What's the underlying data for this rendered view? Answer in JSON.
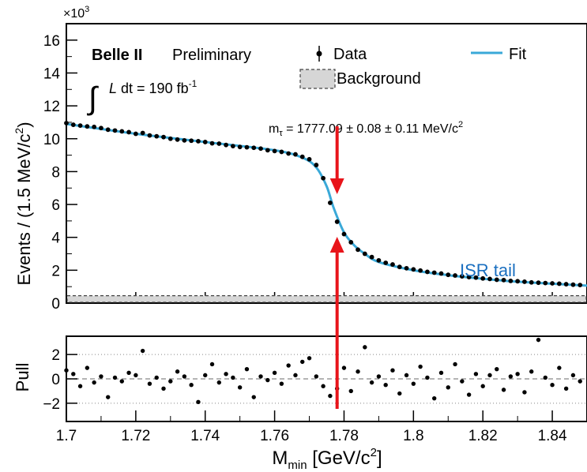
{
  "chart_data": [
    {
      "type": "scatter",
      "panel": "main",
      "multiplier_label": "×10",
      "multiplier_exp": "3",
      "ylabel": "Events / (1.5 MeV/c",
      "ylabel_sup": "2",
      "ylabel_close": ")",
      "ylim": [
        0,
        17
      ],
      "yticks": [
        0,
        2,
        4,
        6,
        8,
        10,
        12,
        14,
        16
      ],
      "ytick_labels": [
        "0",
        "2",
        "4",
        "6",
        "8",
        "10",
        "12",
        "14",
        "16"
      ],
      "xlim": [
        1.7,
        1.85
      ],
      "experiment": "Belle II",
      "status": "Preliminary",
      "lumi_int": "∫",
      "lumi_var": "L",
      "lumi_text": " dt = 190 fb",
      "lumi_sup": "-1",
      "legend": [
        {
          "name": "Data",
          "marker": "point-errorbar"
        },
        {
          "name": "Fit",
          "marker": "line",
          "color": "#3aa9d8"
        },
        {
          "name": "Background",
          "marker": "hatched-box",
          "color": "#d0d0d0"
        }
      ],
      "result_text_1": "m",
      "result_sub": "τ",
      "result_text_2": " = 1777.09 ± 0.08 ± 0.11 MeV/c",
      "result_sup": "2",
      "annotation": "ISR tail",
      "marker_x": 1.778,
      "background_level": 0.45,
      "fit": {
        "x": [
          1.7,
          1.72,
          1.74,
          1.76,
          1.768,
          1.772,
          1.775,
          1.777,
          1.78,
          1.783,
          1.786,
          1.79,
          1.8,
          1.81,
          1.82,
          1.83,
          1.84,
          1.85
        ],
        "y": [
          10.9,
          10.3,
          9.8,
          9.3,
          8.85,
          8.25,
          7.1,
          5.8,
          4.3,
          3.5,
          3.0,
          2.5,
          2.0,
          1.7,
          1.48,
          1.3,
          1.18,
          1.06
        ]
      },
      "data": {
        "x": [
          1.7,
          1.702,
          1.704,
          1.706,
          1.708,
          1.71,
          1.712,
          1.714,
          1.716,
          1.718,
          1.72,
          1.722,
          1.724,
          1.726,
          1.728,
          1.73,
          1.732,
          1.734,
          1.736,
          1.738,
          1.74,
          1.742,
          1.744,
          1.746,
          1.748,
          1.75,
          1.752,
          1.754,
          1.756,
          1.758,
          1.76,
          1.762,
          1.764,
          1.766,
          1.768,
          1.77,
          1.772,
          1.774,
          1.776,
          1.778,
          1.78,
          1.782,
          1.784,
          1.786,
          1.788,
          1.79,
          1.792,
          1.794,
          1.796,
          1.798,
          1.8,
          1.802,
          1.804,
          1.806,
          1.808,
          1.81,
          1.812,
          1.814,
          1.816,
          1.818,
          1.82,
          1.822,
          1.824,
          1.826,
          1.828,
          1.83,
          1.832,
          1.834,
          1.836,
          1.838,
          1.84,
          1.842,
          1.844,
          1.846,
          1.848,
          1.85
        ],
        "y": [
          10.95,
          10.85,
          10.8,
          10.75,
          10.72,
          10.65,
          10.55,
          10.5,
          10.45,
          10.4,
          10.3,
          10.35,
          10.2,
          10.15,
          10.1,
          10.0,
          9.95,
          9.9,
          9.88,
          9.85,
          9.8,
          9.72,
          9.7,
          9.62,
          9.55,
          9.5,
          9.48,
          9.45,
          9.4,
          9.3,
          9.25,
          9.2,
          9.1,
          9.05,
          8.9,
          8.75,
          8.4,
          7.6,
          6.1,
          4.95,
          4.2,
          3.7,
          3.25,
          3.0,
          2.8,
          2.6,
          2.45,
          2.35,
          2.2,
          2.12,
          2.05,
          1.98,
          1.9,
          1.85,
          1.8,
          1.72,
          1.68,
          1.63,
          1.58,
          1.55,
          1.5,
          1.47,
          1.42,
          1.4,
          1.35,
          1.33,
          1.3,
          1.26,
          1.24,
          1.22,
          1.2,
          1.18,
          1.15,
          1.12,
          1.1,
          1.08
        ]
      }
    },
    {
      "type": "scatter",
      "panel": "pull",
      "ylabel": "Pull",
      "ylim": [
        -3.5,
        3.5
      ],
      "yticks": [
        -2,
        0,
        2
      ],
      "ytick_labels": [
        "−2",
        "0",
        "2"
      ],
      "xlabel_main": "M",
      "xlabel_sub": "min",
      "xlabel_rest": " [GeV/c",
      "xlabel_sup": "2",
      "xlabel_close": "]",
      "xlim": [
        1.7,
        1.85
      ],
      "xticks": [
        1.7,
        1.72,
        1.74,
        1.76,
        1.78,
        1.8,
        1.82,
        1.84
      ],
      "xtick_labels": [
        "1.7",
        "1.72",
        "1.74",
        "1.76",
        "1.78",
        "1.8",
        "1.82",
        "1.84"
      ],
      "data": {
        "x": [
          1.7,
          1.702,
          1.704,
          1.706,
          1.708,
          1.71,
          1.712,
          1.714,
          1.716,
          1.718,
          1.72,
          1.722,
          1.724,
          1.726,
          1.728,
          1.73,
          1.732,
          1.734,
          1.736,
          1.738,
          1.74,
          1.742,
          1.744,
          1.746,
          1.748,
          1.75,
          1.752,
          1.754,
          1.756,
          1.758,
          1.76,
          1.762,
          1.764,
          1.766,
          1.768,
          1.77,
          1.772,
          1.774,
          1.776,
          1.778,
          1.78,
          1.782,
          1.784,
          1.786,
          1.788,
          1.79,
          1.792,
          1.794,
          1.796,
          1.798,
          1.8,
          1.802,
          1.804,
          1.806,
          1.808,
          1.81,
          1.812,
          1.814,
          1.816,
          1.818,
          1.82,
          1.822,
          1.824,
          1.826,
          1.828,
          1.83,
          1.832,
          1.834,
          1.836,
          1.838,
          1.84,
          1.842,
          1.844,
          1.846,
          1.848,
          1.85
        ],
        "y": [
          0.7,
          0.4,
          -0.6,
          0.9,
          -0.3,
          0.2,
          -1.5,
          0.1,
          -0.2,
          0.5,
          0.3,
          2.3,
          -0.4,
          0.1,
          -0.8,
          -0.2,
          0.6,
          0.2,
          -0.5,
          -1.9,
          0.3,
          1.2,
          -0.3,
          0.4,
          0.1,
          -0.7,
          0.8,
          -1.5,
          0.2,
          -0.1,
          0.5,
          -0.4,
          1.1,
          0.3,
          1.4,
          1.7,
          0.2,
          -0.6,
          -1.4,
          -0.8,
          0.9,
          -1.0,
          0.6,
          2.6,
          -0.3,
          0.2,
          -0.5,
          0.7,
          -1.2,
          0.3,
          -0.4,
          1.0,
          0.1,
          -1.6,
          0.5,
          -0.7,
          1.2,
          -0.2,
          -1.3,
          0.4,
          -0.6,
          0.3,
          0.8,
          -0.9,
          0.2,
          0.4,
          -1.1,
          0.6,
          3.2,
          0.1,
          -0.5,
          0.9,
          -0.8,
          0.3,
          -0.2,
          0.4
        ]
      }
    }
  ]
}
